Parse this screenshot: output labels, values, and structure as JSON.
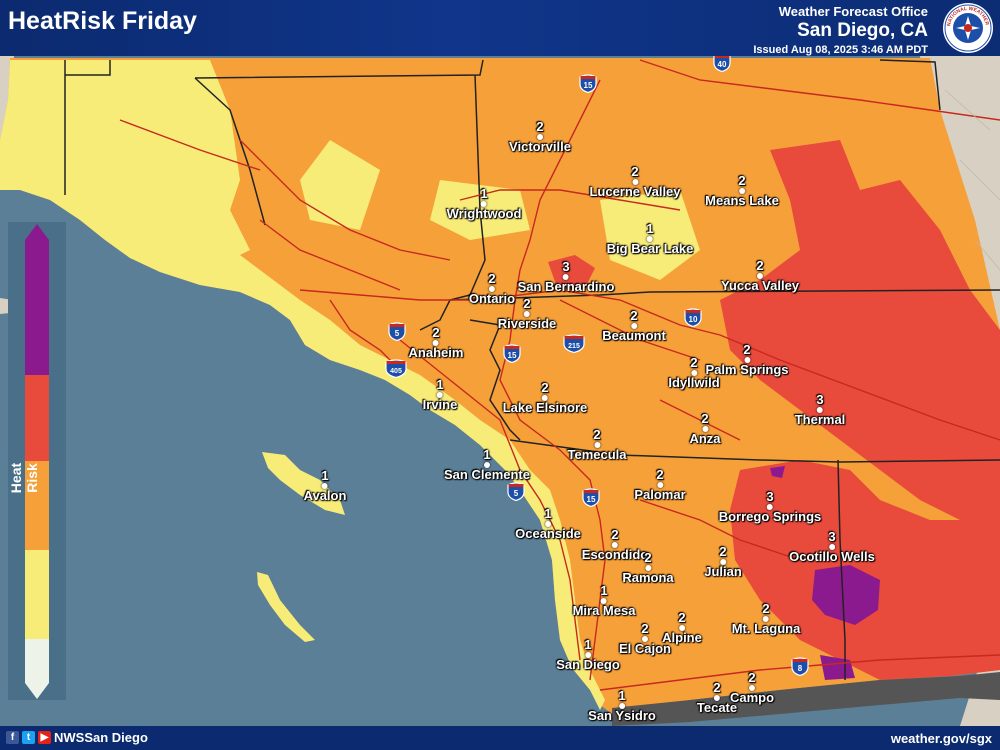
{
  "header": {
    "title": "HeatRisk Friday",
    "office_line1": "Weather Forecast Office",
    "office_line2": "San Diego, CA",
    "issued": "Issued Aug 08, 2025 3:46 AM PDT"
  },
  "seal": {
    "text": "NATIONAL WEATHER SERVICE"
  },
  "legend": {
    "title": "Heat Risk",
    "colors": [
      "#8b1a8f",
      "#e84a3c",
      "#f6a03a",
      "#f7ec78",
      "#eef3ea"
    ]
  },
  "map_colors": {
    "water": "#5b7f97",
    "land_outside": "#d9d2c5",
    "minor": "#f7ec78",
    "moderate": "#f6a03a",
    "major": "#e84a3c",
    "extreme": "#8b1a8f",
    "roads": "#c8281e",
    "county_lines": "#222222"
  },
  "cities": [
    {
      "name": "Victorville",
      "value": "2"
    },
    {
      "name": "Lucerne Valley",
      "value": "2"
    },
    {
      "name": "Means Lake",
      "value": "2"
    },
    {
      "name": "Wrightwood",
      "value": "1"
    },
    {
      "name": "Big Bear Lake",
      "value": "1"
    },
    {
      "name": "Ontario",
      "value": "2"
    },
    {
      "name": "San Bernardino",
      "value": "3"
    },
    {
      "name": "Yucca Valley",
      "value": "2"
    },
    {
      "name": "Riverside",
      "value": "2"
    },
    {
      "name": "Beaumont",
      "value": "2"
    },
    {
      "name": "Anaheim",
      "value": "2"
    },
    {
      "name": "Palm Springs",
      "value": "2"
    },
    {
      "name": "Idyllwild",
      "value": "2"
    },
    {
      "name": "Irvine",
      "value": "1"
    },
    {
      "name": "Lake Elsinore",
      "value": "2"
    },
    {
      "name": "Thermal",
      "value": "3"
    },
    {
      "name": "Anza",
      "value": "2"
    },
    {
      "name": "Temecula",
      "value": "2"
    },
    {
      "name": "San Clemente",
      "value": "1"
    },
    {
      "name": "Avalon",
      "value": "1"
    },
    {
      "name": "Palomar",
      "value": "2"
    },
    {
      "name": "Borrego Springs",
      "value": "3"
    },
    {
      "name": "Oceanside",
      "value": "1"
    },
    {
      "name": "Ocotillo Wells",
      "value": "3"
    },
    {
      "name": "Escondido",
      "value": "2"
    },
    {
      "name": "Ramona",
      "value": "2"
    },
    {
      "name": "Julian",
      "value": "2"
    },
    {
      "name": "Mira Mesa",
      "value": "1"
    },
    {
      "name": "Mt. Laguna",
      "value": "2"
    },
    {
      "name": "Alpine",
      "value": "2"
    },
    {
      "name": "El Cajon",
      "value": "2"
    },
    {
      "name": "San Diego",
      "value": "1"
    },
    {
      "name": "Campo",
      "value": "2"
    },
    {
      "name": "Tecate",
      "value": "2"
    },
    {
      "name": "San Ysidro",
      "value": "1"
    }
  ],
  "highways": [
    {
      "route": "15",
      "type": "interstate"
    },
    {
      "route": "40",
      "type": "interstate"
    },
    {
      "route": "10",
      "type": "interstate"
    },
    {
      "route": "5",
      "type": "interstate"
    },
    {
      "route": "405",
      "type": "interstate"
    },
    {
      "route": "215",
      "type": "interstate"
    },
    {
      "route": "8",
      "type": "interstate"
    }
  ],
  "footer": {
    "social": "NWSSan Diego",
    "url": "weather.gov/sgx"
  }
}
